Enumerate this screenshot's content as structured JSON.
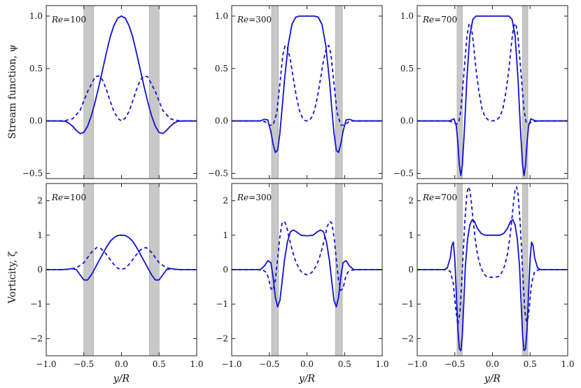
{
  "chart_data": {
    "type": "line",
    "grid": false,
    "line_color": "#1010d8",
    "band_color": "#c8c8c8",
    "series_styles": [
      "solid",
      "dashed"
    ],
    "xlabel": "y/R",
    "xlim": [
      -1.0,
      1.0
    ],
    "xticks": [
      -1.0,
      -0.5,
      0.0,
      0.5,
      1.0
    ],
    "xtick_labels": [
      "−1.0",
      "−0.5",
      "0.0",
      "0.5",
      "1.0"
    ],
    "rows": [
      {
        "ylabel": "Stream function, ψ",
        "ylim": [
          -0.55,
          1.1
        ],
        "yticks": [
          -0.5,
          0.0,
          0.5,
          1.0
        ],
        "ytick_labels": [
          "−0.5",
          "0.0",
          "0.5",
          "1.0"
        ]
      },
      {
        "ylabel": "Vorticity, ζ",
        "ylim": [
          -2.5,
          2.5
        ],
        "yticks": [
          -2,
          -1,
          0,
          1,
          2
        ],
        "ytick_labels": [
          "−2",
          "−1",
          "0",
          "1",
          "2"
        ]
      }
    ],
    "panels": [
      {
        "row": 0,
        "col": 0,
        "label_var": "Re",
        "label_value": "=100",
        "bands": [
          [
            -0.5,
            -0.37
          ],
          [
            0.37,
            0.5
          ]
        ],
        "solid": {
          "x": [
            -1.0,
            -0.85,
            -0.75,
            -0.7,
            -0.65,
            -0.6,
            -0.55,
            -0.5,
            -0.45,
            -0.4,
            -0.35,
            -0.3,
            -0.25,
            -0.2,
            -0.15,
            -0.1,
            -0.05,
            0.0,
            0.05,
            0.1,
            0.15,
            0.2,
            0.25,
            0.3,
            0.35,
            0.4,
            0.45,
            0.5,
            0.55,
            0.6,
            0.65,
            0.7,
            0.75,
            0.85,
            1.0
          ],
          "y": [
            0.0,
            0.0,
            -0.003,
            -0.02,
            -0.05,
            -0.09,
            -0.12,
            -0.11,
            -0.05,
            0.05,
            0.18,
            0.33,
            0.49,
            0.65,
            0.8,
            0.91,
            0.98,
            1.0,
            0.98,
            0.91,
            0.8,
            0.65,
            0.49,
            0.33,
            0.18,
            0.05,
            -0.05,
            -0.11,
            -0.12,
            -0.09,
            -0.05,
            -0.02,
            -0.003,
            0.0,
            0.0
          ]
        },
        "dashed": {
          "x": [
            -1.0,
            -0.85,
            -0.75,
            -0.65,
            -0.55,
            -0.45,
            -0.35,
            -0.3,
            -0.25,
            -0.2,
            -0.15,
            -0.1,
            -0.05,
            0.0,
            0.05,
            0.1,
            0.15,
            0.2,
            0.25,
            0.3,
            0.35,
            0.45,
            0.55,
            0.65,
            0.75,
            0.85,
            1.0
          ],
          "y": [
            0.0,
            0.0,
            0.003,
            0.02,
            0.1,
            0.28,
            0.42,
            0.43,
            0.39,
            0.3,
            0.19,
            0.09,
            0.025,
            0.0,
            0.025,
            0.09,
            0.19,
            0.3,
            0.39,
            0.43,
            0.42,
            0.28,
            0.1,
            0.02,
            0.003,
            0.0,
            0.0
          ]
        }
      },
      {
        "row": 0,
        "col": 1,
        "label_var": "Re",
        "label_value": "=300",
        "bands": [
          [
            -0.47,
            -0.38
          ],
          [
            0.38,
            0.47
          ]
        ],
        "solid": {
          "x": [
            -1.0,
            -0.7,
            -0.62,
            -0.57,
            -0.52,
            -0.48,
            -0.45,
            -0.42,
            -0.39,
            -0.36,
            -0.33,
            -0.3,
            -0.25,
            -0.2,
            -0.15,
            -0.1,
            -0.05,
            0.0,
            0.05,
            0.1,
            0.15,
            0.2,
            0.25,
            0.3,
            0.33,
            0.36,
            0.39,
            0.42,
            0.45,
            0.48,
            0.52,
            0.57,
            0.62,
            0.7,
            1.0
          ],
          "y": [
            0.0,
            0.0,
            0.0,
            0.015,
            0.01,
            -0.1,
            -0.22,
            -0.3,
            -0.28,
            -0.12,
            0.12,
            0.38,
            0.72,
            0.92,
            0.99,
            1.0,
            1.0,
            1.0,
            1.0,
            1.0,
            0.99,
            0.92,
            0.72,
            0.38,
            0.12,
            -0.12,
            -0.28,
            -0.3,
            -0.22,
            -0.1,
            0.01,
            0.015,
            0.0,
            0.0,
            0.0
          ]
        },
        "dashed": {
          "x": [
            -1.0,
            -0.7,
            -0.6,
            -0.55,
            -0.5,
            -0.45,
            -0.4,
            -0.35,
            -0.32,
            -0.29,
            -0.26,
            -0.22,
            -0.18,
            -0.14,
            -0.1,
            -0.06,
            -0.03,
            0.0,
            0.03,
            0.06,
            0.1,
            0.14,
            0.18,
            0.22,
            0.26,
            0.29,
            0.32,
            0.35,
            0.4,
            0.45,
            0.5,
            0.55,
            0.6,
            0.7,
            1.0
          ],
          "y": [
            0.0,
            0.0,
            0.0,
            -0.01,
            -0.04,
            -0.04,
            0.08,
            0.42,
            0.63,
            0.72,
            0.7,
            0.58,
            0.4,
            0.23,
            0.1,
            0.03,
            0.005,
            0.0,
            0.005,
            0.03,
            0.1,
            0.23,
            0.4,
            0.58,
            0.7,
            0.72,
            0.63,
            0.42,
            0.08,
            -0.04,
            -0.04,
            -0.01,
            0.0,
            0.0,
            0.0
          ]
        }
      },
      {
        "row": 0,
        "col": 2,
        "label_var": "Re",
        "label_value": "=700",
        "bands": [
          [
            -0.47,
            -0.4
          ],
          [
            0.4,
            0.47
          ]
        ],
        "solid": {
          "x": [
            -1.0,
            -0.65,
            -0.58,
            -0.54,
            -0.51,
            -0.48,
            -0.46,
            -0.44,
            -0.42,
            -0.4,
            -0.37,
            -0.34,
            -0.3,
            -0.26,
            -0.22,
            -0.18,
            -0.12,
            0.0,
            0.12,
            0.18,
            0.22,
            0.26,
            0.3,
            0.34,
            0.37,
            0.4,
            0.42,
            0.44,
            0.46,
            0.48,
            0.51,
            0.54,
            0.58,
            0.65,
            1.0
          ],
          "y": [
            0.0,
            0.0,
            0.0,
            0.01,
            0.02,
            -0.05,
            -0.2,
            -0.42,
            -0.52,
            -0.42,
            -0.05,
            0.4,
            0.82,
            0.97,
            1.0,
            1.0,
            1.0,
            1.0,
            1.0,
            1.0,
            1.0,
            0.97,
            0.82,
            0.4,
            -0.05,
            -0.42,
            -0.52,
            -0.42,
            -0.2,
            -0.05,
            0.02,
            0.01,
            0.0,
            0.0,
            0.0
          ]
        },
        "dashed": {
          "x": [
            -1.0,
            -0.6,
            -0.52,
            -0.48,
            -0.45,
            -0.42,
            -0.38,
            -0.34,
            -0.31,
            -0.28,
            -0.25,
            -0.22,
            -0.18,
            -0.14,
            -0.1,
            -0.05,
            0.0,
            0.05,
            0.1,
            0.14,
            0.18,
            0.22,
            0.25,
            0.28,
            0.31,
            0.34,
            0.38,
            0.42,
            0.45,
            0.48,
            0.52,
            0.6,
            1.0
          ],
          "y": [
            0.0,
            0.0,
            -0.01,
            -0.03,
            -0.02,
            0.1,
            0.45,
            0.8,
            0.93,
            0.9,
            0.72,
            0.5,
            0.28,
            0.12,
            0.04,
            0.005,
            0.0,
            0.005,
            0.04,
            0.12,
            0.28,
            0.5,
            0.72,
            0.9,
            0.93,
            0.8,
            0.45,
            0.1,
            -0.02,
            -0.03,
            -0.01,
            0.0,
            0.0
          ]
        }
      },
      {
        "row": 1,
        "col": 0,
        "label_var": "Re",
        "label_value": "=100",
        "bands": [
          [
            -0.5,
            -0.37
          ],
          [
            0.37,
            0.5
          ]
        ],
        "solid": {
          "x": [
            -1.0,
            -0.8,
            -0.72,
            -0.66,
            -0.6,
            -0.55,
            -0.5,
            -0.45,
            -0.4,
            -0.35,
            -0.3,
            -0.25,
            -0.2,
            -0.15,
            -0.1,
            -0.05,
            0.0,
            0.05,
            0.1,
            0.15,
            0.2,
            0.25,
            0.3,
            0.35,
            0.4,
            0.45,
            0.5,
            0.55,
            0.6,
            0.66,
            0.72,
            0.8,
            1.0
          ],
          "y": [
            0.0,
            0.0,
            0.01,
            0.03,
            0.0,
            -0.15,
            -0.3,
            -0.3,
            -0.15,
            0.05,
            0.25,
            0.45,
            0.65,
            0.82,
            0.93,
            0.99,
            1.0,
            0.99,
            0.93,
            0.82,
            0.65,
            0.45,
            0.25,
            0.05,
            -0.15,
            -0.3,
            -0.3,
            -0.15,
            0.0,
            0.03,
            0.01,
            0.0,
            0.0
          ]
        },
        "dashed": {
          "x": [
            -1.0,
            -0.8,
            -0.7,
            -0.6,
            -0.5,
            -0.4,
            -0.33,
            -0.28,
            -0.22,
            -0.16,
            -0.1,
            -0.05,
            0.0,
            0.05,
            0.1,
            0.16,
            0.22,
            0.28,
            0.33,
            0.4,
            0.5,
            0.6,
            0.7,
            0.8,
            1.0
          ],
          "y": [
            0.0,
            0.0,
            0.01,
            0.05,
            0.2,
            0.5,
            0.64,
            0.62,
            0.5,
            0.32,
            0.15,
            0.04,
            0.0,
            0.04,
            0.15,
            0.32,
            0.5,
            0.62,
            0.64,
            0.5,
            0.2,
            0.05,
            0.01,
            0.0,
            0.0
          ]
        }
      },
      {
        "row": 1,
        "col": 1,
        "label_var": "Re",
        "label_value": "=300",
        "bands": [
          [
            -0.47,
            -0.38
          ],
          [
            0.38,
            0.47
          ]
        ],
        "solid": {
          "x": [
            -1.0,
            -0.7,
            -0.62,
            -0.56,
            -0.52,
            -0.48,
            -0.45,
            -0.42,
            -0.39,
            -0.36,
            -0.33,
            -0.3,
            -0.26,
            -0.22,
            -0.18,
            -0.14,
            -0.08,
            0.0,
            0.08,
            0.14,
            0.18,
            0.22,
            0.26,
            0.3,
            0.33,
            0.36,
            0.39,
            0.42,
            0.45,
            0.48,
            0.52,
            0.56,
            0.62,
            0.7,
            1.0
          ],
          "y": [
            0.0,
            0.0,
            0.0,
            0.12,
            0.26,
            0.2,
            -0.2,
            -0.8,
            -1.08,
            -0.9,
            -0.35,
            0.25,
            0.8,
            1.1,
            1.15,
            1.1,
            1.0,
            0.98,
            1.0,
            1.1,
            1.15,
            1.1,
            0.8,
            0.25,
            -0.35,
            -0.9,
            -1.08,
            -0.8,
            -0.2,
            0.2,
            0.26,
            0.12,
            0.0,
            0.0,
            0.0
          ]
        },
        "dashed": {
          "x": [
            -1.0,
            -0.65,
            -0.58,
            -0.54,
            -0.51,
            -0.48,
            -0.45,
            -0.42,
            -0.39,
            -0.36,
            -0.33,
            -0.3,
            -0.27,
            -0.24,
            -0.2,
            -0.16,
            -0.12,
            -0.08,
            -0.04,
            0.0,
            0.04,
            0.08,
            0.12,
            0.16,
            0.2,
            0.24,
            0.27,
            0.3,
            0.33,
            0.36,
            0.39,
            0.42,
            0.45,
            0.48,
            0.51,
            0.54,
            0.58,
            0.65,
            1.0
          ],
          "y": [
            0.0,
            0.0,
            -0.02,
            -0.08,
            -0.25,
            -0.55,
            -0.6,
            -0.3,
            0.3,
            0.95,
            1.35,
            1.4,
            1.25,
            0.95,
            0.6,
            0.3,
            0.1,
            -0.05,
            -0.12,
            -0.15,
            -0.12,
            -0.05,
            0.1,
            0.3,
            0.6,
            0.95,
            1.25,
            1.4,
            1.35,
            0.95,
            0.3,
            -0.3,
            -0.6,
            -0.55,
            -0.25,
            -0.08,
            -0.02,
            0.0,
            0.0
          ]
        }
      },
      {
        "row": 1,
        "col": 2,
        "label_var": "Re",
        "label_value": "=700",
        "bands": [
          [
            -0.47,
            -0.4
          ],
          [
            0.4,
            0.47
          ]
        ],
        "solid": {
          "x": [
            -1.0,
            -0.64,
            -0.6,
            -0.56,
            -0.54,
            -0.52,
            -0.5,
            -0.48,
            -0.46,
            -0.44,
            -0.42,
            -0.4,
            -0.38,
            -0.36,
            -0.33,
            -0.3,
            -0.27,
            -0.24,
            -0.2,
            -0.15,
            -0.1,
            -0.05,
            0.0,
            0.05,
            0.1,
            0.15,
            0.2,
            0.24,
            0.27,
            0.3,
            0.33,
            0.36,
            0.38,
            0.4,
            0.42,
            0.44,
            0.46,
            0.48,
            0.5,
            0.52,
            0.54,
            0.56,
            0.6,
            0.64,
            1.0
          ],
          "y": [
            0.0,
            0.0,
            0.05,
            0.35,
            0.7,
            0.8,
            0.3,
            -0.7,
            -1.7,
            -2.3,
            -2.35,
            -1.9,
            -0.9,
            0.1,
            0.9,
            1.3,
            1.45,
            1.4,
            1.2,
            1.05,
            1.0,
            1.0,
            1.0,
            1.0,
            1.0,
            1.05,
            1.2,
            1.4,
            1.45,
            1.3,
            0.9,
            0.1,
            -0.9,
            -1.9,
            -2.35,
            -2.3,
            -1.7,
            -0.7,
            0.3,
            0.8,
            0.7,
            0.35,
            0.05,
            0.0,
            0.0
          ]
        },
        "dashed": {
          "x": [
            -1.0,
            -0.62,
            -0.56,
            -0.52,
            -0.49,
            -0.46,
            -0.43,
            -0.4,
            -0.37,
            -0.34,
            -0.32,
            -0.3,
            -0.28,
            -0.26,
            -0.23,
            -0.2,
            -0.16,
            -0.12,
            -0.08,
            -0.04,
            0.0,
            0.04,
            0.08,
            0.12,
            0.16,
            0.2,
            0.23,
            0.26,
            0.28,
            0.3,
            0.32,
            0.34,
            0.37,
            0.4,
            0.43,
            0.46,
            0.49,
            0.52,
            0.56,
            0.62,
            1.0
          ],
          "y": [
            0.0,
            0.0,
            -0.05,
            -0.4,
            -1.1,
            -1.6,
            -1.2,
            0.0,
            1.3,
            2.2,
            2.4,
            2.3,
            1.95,
            1.5,
            0.9,
            0.45,
            0.1,
            -0.1,
            -0.2,
            -0.22,
            -0.22,
            -0.22,
            -0.2,
            -0.1,
            0.1,
            0.45,
            0.9,
            1.5,
            1.95,
            2.3,
            2.4,
            2.2,
            1.3,
            0.0,
            -1.2,
            -1.6,
            -1.1,
            -0.4,
            -0.05,
            0.0,
            0.0
          ]
        }
      }
    ]
  }
}
